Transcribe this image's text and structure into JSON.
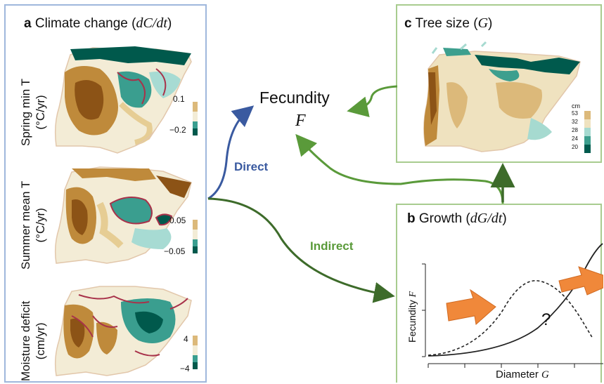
{
  "panel_a": {
    "letter": "a",
    "title_text": "Climate change (",
    "title_math": "dC/dt",
    "title_close": ")",
    "rows": [
      {
        "line1": "Spring min T",
        "line2": "(°C/yr)",
        "legend_top": "0.1",
        "legend_bottom": "−0.2"
      },
      {
        "line1": "Summer mean T",
        "line2": "(°C/yr)",
        "legend_top": "0.05",
        "legend_bottom": "−0.05"
      },
      {
        "line1": "Moisture deficit",
        "line2": "(cm/yr)",
        "legend_top": "4",
        "legend_bottom": "−4"
      }
    ],
    "colors": {
      "brown_dark": "#8c5316",
      "brown": "#bf8a3b",
      "tan": "#e6cd94",
      "light": "#f3ecd6",
      "teal_light": "#a7dbd3",
      "teal": "#3a9e8f",
      "teal_dark": "#00594c",
      "contour": "#a8324a"
    }
  },
  "panel_c": {
    "letter": "c",
    "title_text": "Tree size (",
    "title_math": "G",
    "title_close": ")",
    "legend_unit": "cm",
    "legend_values": [
      "53",
      "32",
      "28",
      "24",
      "20"
    ],
    "legend_colors": [
      "#dcb97a",
      "#efe2bf",
      "#a6dad0",
      "#3d9f8e",
      "#005a4d"
    ]
  },
  "panel_b": {
    "letter": "b",
    "title_text": "Growth (",
    "title_math": "dG/dt",
    "title_close": ")",
    "ylabel_text": "Fecundity ",
    "ylabel_math": "F",
    "xlabel_text": "Diameter ",
    "xlabel_math": "G",
    "question": "?"
  },
  "center": {
    "fecundity_label": "Fecundity",
    "fecundity_symbol": "F",
    "direct_label": "Direct",
    "indirect_label": "Indirect",
    "direct_color": "#3a5aa0",
    "indirect_color": "#5a9a3a",
    "arrow_orange": "#f0883a"
  }
}
